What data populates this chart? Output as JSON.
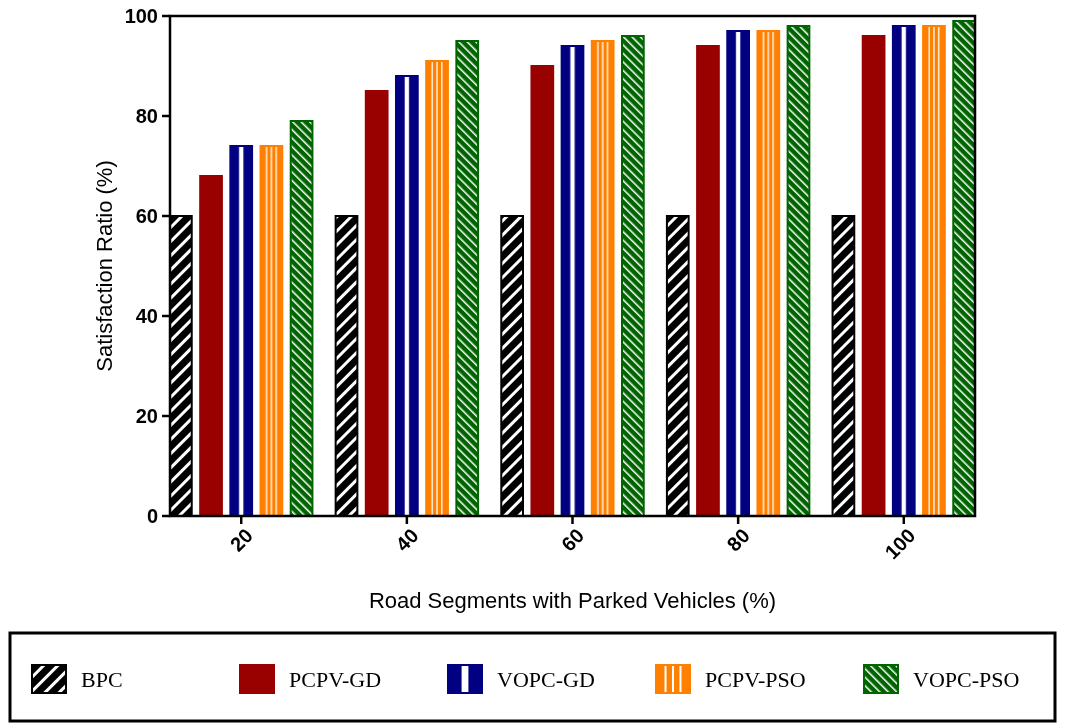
{
  "chart_data": {
    "type": "bar",
    "xlabel": "Road Segments with Parked Vehicles (%)",
    "ylabel": "Satisfaction Ratio (%)",
    "categories": [
      "20",
      "40",
      "60",
      "80",
      "100"
    ],
    "series": [
      {
        "name": "BPC",
        "color": "#000000",
        "values": [
          60,
          60,
          60,
          60,
          60
        ]
      },
      {
        "name": "PCPV-GD",
        "color": "#990000",
        "values": [
          68,
          85,
          90,
          94,
          96
        ]
      },
      {
        "name": "VOPC-GD",
        "color": "#000080",
        "values": [
          74,
          88,
          94,
          97,
          98
        ]
      },
      {
        "name": "PCPV-PSO",
        "color": "#ff8000",
        "values": [
          74,
          91,
          95,
          97,
          98
        ]
      },
      {
        "name": "VOPC-PSO",
        "color": "#006400",
        "values": [
          79,
          95,
          96,
          98,
          99
        ]
      }
    ],
    "ylim": [
      0,
      100
    ],
    "yticks": [
      0,
      20,
      40,
      60,
      80,
      100
    ],
    "grid": false,
    "legend": "bottom"
  }
}
